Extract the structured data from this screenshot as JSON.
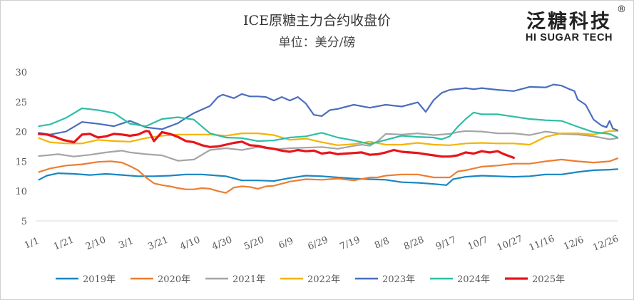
{
  "header": {
    "title": "ICE原糖主力合约收盘价",
    "subtitle": "单位：美分/磅"
  },
  "logo": {
    "name_cn": "泛糖科技",
    "name_en": "HI SUGAR TECH",
    "reg_mark": "®"
  },
  "chart_data": {
    "type": "line",
    "title": "ICE原糖主力合约收盘价",
    "ylabel": "单位：美分/磅",
    "xlabel": "",
    "ylim": [
      5,
      30
    ],
    "yticks": [
      5,
      10,
      15,
      20,
      25,
      30
    ],
    "grid": false,
    "legend_position": "bottom",
    "x_day_range": [
      1,
      365
    ],
    "x_ticks": [
      {
        "label": "1/1",
        "day": 1
      },
      {
        "label": "1/21",
        "day": 21
      },
      {
        "label": "2/10",
        "day": 41
      },
      {
        "label": "3/1",
        "day": 60
      },
      {
        "label": "3/21",
        "day": 80
      },
      {
        "label": "4/10",
        "day": 100
      },
      {
        "label": "4/30",
        "day": 120
      },
      {
        "label": "5/20",
        "day": 140
      },
      {
        "label": "6/9",
        "day": 160
      },
      {
        "label": "6/29",
        "day": 180
      },
      {
        "label": "7/19",
        "day": 200
      },
      {
        "label": "8/8",
        "day": 220
      },
      {
        "label": "8/28",
        "day": 240
      },
      {
        "label": "9/17",
        "day": 260
      },
      {
        "label": "10/7",
        "day": 280
      },
      {
        "label": "10/27",
        "day": 300
      },
      {
        "label": "11/16",
        "day": 320
      },
      {
        "label": "12/6",
        "day": 340
      },
      {
        "label": "12/26",
        "day": 360
      }
    ],
    "series": [
      {
        "name": "2019年",
        "color": "#1a86c2",
        "x": [
          3,
          8,
          15,
          25,
          35,
          45,
          55,
          65,
          75,
          85,
          95,
          105,
          115,
          120,
          130,
          140,
          150,
          160,
          170,
          180,
          190,
          200,
          210,
          220,
          230,
          240,
          250,
          258,
          262,
          270,
          280,
          290,
          300,
          310,
          320,
          330,
          340,
          350,
          360,
          365
        ],
        "y": [
          11.9,
          12.6,
          13.0,
          12.9,
          12.7,
          12.9,
          12.7,
          12.5,
          12.5,
          12.6,
          12.8,
          12.8,
          12.6,
          12.5,
          11.8,
          11.8,
          11.7,
          12.2,
          12.6,
          12.5,
          12.3,
          12.1,
          12.0,
          11.9,
          11.5,
          11.4,
          11.2,
          11.0,
          12.0,
          12.4,
          12.6,
          12.5,
          12.4,
          12.5,
          12.8,
          12.8,
          13.2,
          13.5,
          13.6,
          13.7
        ]
      },
      {
        "name": "2020年",
        "color": "#ee7d31",
        "x": [
          3,
          10,
          20,
          30,
          40,
          48,
          55,
          60,
          65,
          70,
          75,
          80,
          85,
          90,
          95,
          100,
          105,
          110,
          115,
          120,
          125,
          130,
          135,
          140,
          145,
          150,
          160,
          170,
          180,
          190,
          200,
          210,
          215,
          220,
          230,
          240,
          250,
          255,
          260,
          265,
          270,
          280,
          290,
          300,
          310,
          320,
          330,
          340,
          350,
          360,
          365
        ],
        "y": [
          13.2,
          13.8,
          14.3,
          14.5,
          14.9,
          15.0,
          14.8,
          14.2,
          13.5,
          12.3,
          11.3,
          11.0,
          10.8,
          10.5,
          10.3,
          10.3,
          10.5,
          10.4,
          10.0,
          9.7,
          10.6,
          10.8,
          10.7,
          10.4,
          10.8,
          10.9,
          11.6,
          12.0,
          11.9,
          12.1,
          11.8,
          12.3,
          12.3,
          12.6,
          12.8,
          12.8,
          12.3,
          12.3,
          12.3,
          13.3,
          13.5,
          14.1,
          14.3,
          14.6,
          14.6,
          15.0,
          15.3,
          15.0,
          14.8,
          15.0,
          15.5
        ]
      },
      {
        "name": "2021年",
        "color": "#a5a5a5",
        "x": [
          3,
          8,
          15,
          25,
          35,
          45,
          55,
          60,
          70,
          80,
          90,
          100,
          110,
          120,
          130,
          140,
          150,
          160,
          170,
          180,
          190,
          200,
          205,
          210,
          215,
          220,
          230,
          240,
          250,
          260,
          265,
          270,
          280,
          290,
          300,
          310,
          320,
          330,
          340,
          350,
          360,
          365
        ],
        "y": [
          15.9,
          16.0,
          16.2,
          15.8,
          16.1,
          16.5,
          16.8,
          16.5,
          16.2,
          16.0,
          15.1,
          15.3,
          16.9,
          17.2,
          16.9,
          17.4,
          17.0,
          17.2,
          17.3,
          17.4,
          17.1,
          17.6,
          17.8,
          17.6,
          18.4,
          19.6,
          19.5,
          19.7,
          19.4,
          19.6,
          19.9,
          20.1,
          20.0,
          19.7,
          19.7,
          19.4,
          20.0,
          19.6,
          19.5,
          19.2,
          18.7,
          18.9
        ]
      },
      {
        "name": "2022年",
        "color": "#f4b400",
        "x": [
          3,
          10,
          20,
          30,
          40,
          50,
          60,
          70,
          80,
          90,
          100,
          110,
          120,
          130,
          140,
          150,
          160,
          170,
          180,
          190,
          200,
          210,
          220,
          230,
          240,
          250,
          260,
          270,
          280,
          290,
          300,
          310,
          320,
          330,
          340,
          350,
          360,
          365
        ],
        "y": [
          18.9,
          18.2,
          18.0,
          18.0,
          18.6,
          18.4,
          18.3,
          18.9,
          19.3,
          19.5,
          19.5,
          19.5,
          19.3,
          19.7,
          19.7,
          19.4,
          18.6,
          18.8,
          18.2,
          17.7,
          17.9,
          18.3,
          17.8,
          17.8,
          18.1,
          17.8,
          17.7,
          18.0,
          18.1,
          18.0,
          18.0,
          17.8,
          19.1,
          19.7,
          19.7,
          19.5,
          20.1,
          20.1
        ]
      },
      {
        "name": "2023年",
        "color": "#4a6ebe",
        "x": [
          3,
          10,
          20,
          30,
          40,
          50,
          60,
          70,
          80,
          90,
          95,
          100,
          110,
          115,
          118,
          125,
          130,
          135,
          140,
          145,
          150,
          155,
          160,
          165,
          170,
          175,
          180,
          185,
          190,
          200,
          210,
          220,
          230,
          240,
          245,
          250,
          255,
          260,
          270,
          275,
          280,
          290,
          300,
          310,
          320,
          325,
          330,
          335,
          338,
          340,
          345,
          350,
          355,
          358,
          360,
          362,
          365
        ],
        "y": [
          19.8,
          19.5,
          20.0,
          21.6,
          21.3,
          20.9,
          21.8,
          20.7,
          20.4,
          21.4,
          22.3,
          23.1,
          24.3,
          25.8,
          26.2,
          25.6,
          26.3,
          25.9,
          25.9,
          25.8,
          25.2,
          25.8,
          25.2,
          25.8,
          24.7,
          22.8,
          22.6,
          23.6,
          23.8,
          24.5,
          24.0,
          24.5,
          24.2,
          24.9,
          23.3,
          25.3,
          26.5,
          27.0,
          27.3,
          27.1,
          27.3,
          27.0,
          26.8,
          27.5,
          27.4,
          27.9,
          27.7,
          27.1,
          26.8,
          25.4,
          24.5,
          22.0,
          21.0,
          20.7,
          21.8,
          20.5,
          20.2
        ]
      },
      {
        "name": "2024年",
        "color": "#2ebfa5",
        "x": [
          3,
          10,
          20,
          30,
          40,
          50,
          55,
          60,
          70,
          80,
          90,
          100,
          110,
          120,
          130,
          140,
          150,
          160,
          170,
          180,
          190,
          200,
          210,
          220,
          230,
          240,
          250,
          255,
          260,
          265,
          270,
          275,
          280,
          290,
          300,
          310,
          320,
          330,
          340,
          350,
          360,
          365
        ],
        "y": [
          20.9,
          21.2,
          22.3,
          23.9,
          23.6,
          23.1,
          22.2,
          21.3,
          20.9,
          22.1,
          22.4,
          22.0,
          19.7,
          19.0,
          18.9,
          18.4,
          18.5,
          19.0,
          19.2,
          19.8,
          19.0,
          18.5,
          17.9,
          18.6,
          19.3,
          19.1,
          19.0,
          18.7,
          19.2,
          20.8,
          22.1,
          23.2,
          22.9,
          22.9,
          22.5,
          22.1,
          21.9,
          21.8,
          20.8,
          19.9,
          19.6,
          19.0
        ]
      },
      {
        "name": "2025年",
        "color": "#e8141a",
        "x": [
          3,
          8,
          12,
          18,
          25,
          30,
          35,
          40,
          45,
          50,
          55,
          60,
          65,
          70,
          72,
          75,
          80,
          85,
          90,
          95,
          100,
          105,
          110,
          115,
          120,
          125,
          130,
          135,
          140,
          145,
          150,
          155,
          160,
          165,
          170,
          175,
          180,
          185,
          190,
          195,
          200,
          205,
          210,
          215,
          220,
          225,
          230,
          235,
          240,
          245,
          250,
          255,
          260,
          265,
          270,
          275,
          280,
          285,
          290,
          294,
          297,
          300
        ],
        "y": [
          19.6,
          19.5,
          19.2,
          18.6,
          18.2,
          19.5,
          19.6,
          19.0,
          19.2,
          19.6,
          19.5,
          19.3,
          19.5,
          20.1,
          20.0,
          18.4,
          19.9,
          19.6,
          19.1,
          18.4,
          18.2,
          17.7,
          17.4,
          17.5,
          17.8,
          18.1,
          18.3,
          17.7,
          17.6,
          17.3,
          17.1,
          16.8,
          16.6,
          16.9,
          16.7,
          16.8,
          16.3,
          16.5,
          16.2,
          16.3,
          16.4,
          16.5,
          16.1,
          16.2,
          16.5,
          16.9,
          16.6,
          16.5,
          16.4,
          16.2,
          16.0,
          15.8,
          15.8,
          16.0,
          16.5,
          16.3,
          16.7,
          16.5,
          16.7,
          16.2,
          15.9,
          15.6
        ]
      }
    ]
  }
}
